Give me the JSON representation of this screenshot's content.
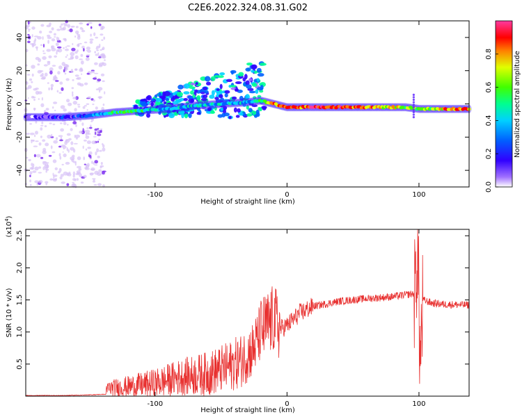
{
  "title": "C2E6.2022.324.08.31.G02",
  "colors": {
    "snr_line": "#e8302f",
    "colormap": [
      "#ffffff",
      "#7a00ff",
      "#1a1aff",
      "#00c8ff",
      "#00ff80",
      "#40ff00",
      "#ffff00",
      "#ff8000",
      "#ff0000",
      "#ff4090"
    ],
    "faint_noise": "#d7c2f7"
  },
  "chart_data": [
    {
      "type": "heatmap",
      "xlabel": "Height of straight line (km)",
      "ylabel": "Frequency (Hz)",
      "xlim": [
        -198,
        138
      ],
      "ylim": [
        -50,
        50
      ],
      "xticks": [
        -100,
        0,
        100
      ],
      "xtick_labels": [
        "-100",
        "0",
        "100"
      ],
      "yticks": [
        -40,
        -20,
        0,
        20,
        40
      ],
      "ytick_labels": [
        "-40",
        "-20",
        "0",
        "20",
        "40"
      ],
      "colorbar": {
        "label": "Normalized spectral amplitude",
        "range": [
          0,
          1
        ],
        "ticks": [
          0.0,
          0.2,
          0.4,
          0.6,
          0.8
        ],
        "tick_labels": [
          "0.0",
          "0.2",
          "0.4",
          "0.6",
          "0.8"
        ]
      },
      "ridge": {
        "x": [
          -198,
          -170,
          -150,
          -130,
          -110,
          -90,
          -70,
          -50,
          -30,
          -20,
          -10,
          0,
          20,
          60,
          90,
          100,
          120,
          138
        ],
        "y": [
          -8,
          -8,
          -7,
          -5,
          -4,
          -3,
          -1,
          0,
          1,
          2,
          0,
          -2,
          -2,
          -2,
          -2,
          -3,
          -3,
          -3
        ],
        "amplitude": [
          0.15,
          0.2,
          0.35,
          0.6,
          0.55,
          0.4,
          0.45,
          0.4,
          0.45,
          0.5,
          0.85,
          0.9,
          0.95,
          0.9,
          0.7,
          0.6,
          0.8,
          0.9
        ]
      }
    },
    {
      "type": "line",
      "xlabel": "Height of straight line (km)",
      "ylabel": "SNR (10 * v/v)",
      "y_multiplier": "(x10",
      "y_multiplier_exp": "4",
      "y_multiplier_close": ")",
      "xlim": [
        -198,
        138
      ],
      "ylim": [
        0,
        2.6
      ],
      "xticks": [
        -100,
        0,
        100
      ],
      "xtick_labels": [
        "-100",
        "0",
        "100"
      ],
      "yticks": [
        0.5,
        1.0,
        1.5,
        2.0,
        2.5
      ],
      "ytick_labels": [
        "0.5",
        "1.0",
        "1.5",
        "2.0",
        "2.5"
      ],
      "series": [
        {
          "x": [
            -198,
            -170,
            -150,
            -137,
            -136,
            -120,
            -100,
            -80,
            -60,
            -45,
            -35,
            -25,
            -20,
            -15,
            -10,
            -5,
            0,
            10,
            20,
            40,
            60,
            80,
            90,
            97,
            99,
            101,
            103,
            110,
            120,
            138
          ],
          "y": [
            0.01,
            0.01,
            0.02,
            0.03,
            0.12,
            0.15,
            0.2,
            0.3,
            0.35,
            0.45,
            0.55,
            0.75,
            1.0,
            1.1,
            1.2,
            1.05,
            1.1,
            1.3,
            1.4,
            1.48,
            1.52,
            1.55,
            1.58,
            1.6,
            2.3,
            0.5,
            1.5,
            1.45,
            1.43,
            1.42
          ]
        }
      ]
    }
  ]
}
